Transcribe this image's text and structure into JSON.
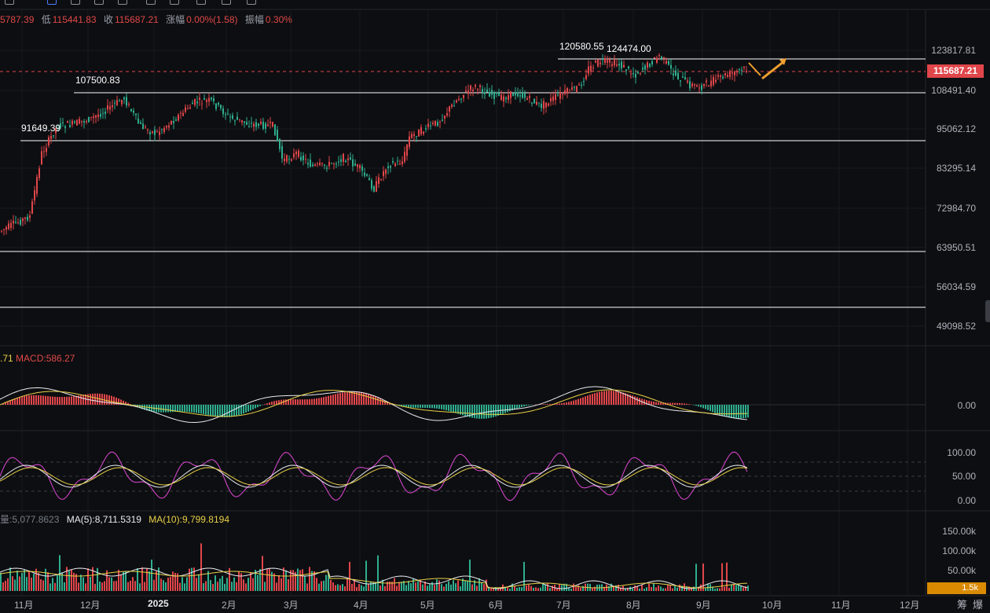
{
  "toolbar": {
    "icons": [
      "expand-icon",
      "star-icon",
      "indicator-icon",
      "fx-icon",
      "layout-icon",
      "screenshot-icon",
      "settings-icon",
      "fullscreen-icon",
      "timer-icon",
      "window-icon"
    ]
  },
  "ohlc": {
    "open_fragment": "5787.39",
    "low_label": "低",
    "low": "115441.83",
    "close_label": "收",
    "close": "115687.21",
    "change_label": "涨幅",
    "change": "0.00%(1.58)",
    "amp_label": "振幅",
    "amp": "0.30%"
  },
  "price_axis": [
    "123817.81",
    "108491.40",
    "95062.12",
    "83295.14",
    "72984.70",
    "63950.51",
    "56034.59",
    "49098.52"
  ],
  "current_price": "115687.21",
  "annotations": {
    "a1": "120580.55",
    "a2": "124474.00",
    "a3": "107500.83",
    "a4": "91649.39"
  },
  "macd": {
    "label_prefix": ".71",
    "label": "MACD:586.27",
    "axis": [
      "0.00"
    ]
  },
  "kdj": {
    "axis": [
      "100.00",
      "50.00",
      "0.00"
    ]
  },
  "volume": {
    "label_prefix": "量:5,077.8623",
    "ma5": "MA(5):8,711.5319",
    "ma10": "MA(10):9,799.8194",
    "axis": [
      "150.00k",
      "100.00k",
      "50.00k"
    ],
    "current": "1.5k"
  },
  "time_axis": [
    "11月",
    "12月",
    "2025",
    "2月",
    "3月",
    "4月",
    "5月",
    "6月",
    "7月",
    "8月",
    "9月",
    "10月",
    "11月",
    "12月"
  ],
  "corner_icons": [
    "筹",
    "爆"
  ],
  "colors": {
    "up": "#e0464a",
    "down": "#2fae8f",
    "bg": "#0d0e11",
    "yellow": "#e8d048",
    "magenta": "#e048d8",
    "orange": "#f0a030"
  }
}
